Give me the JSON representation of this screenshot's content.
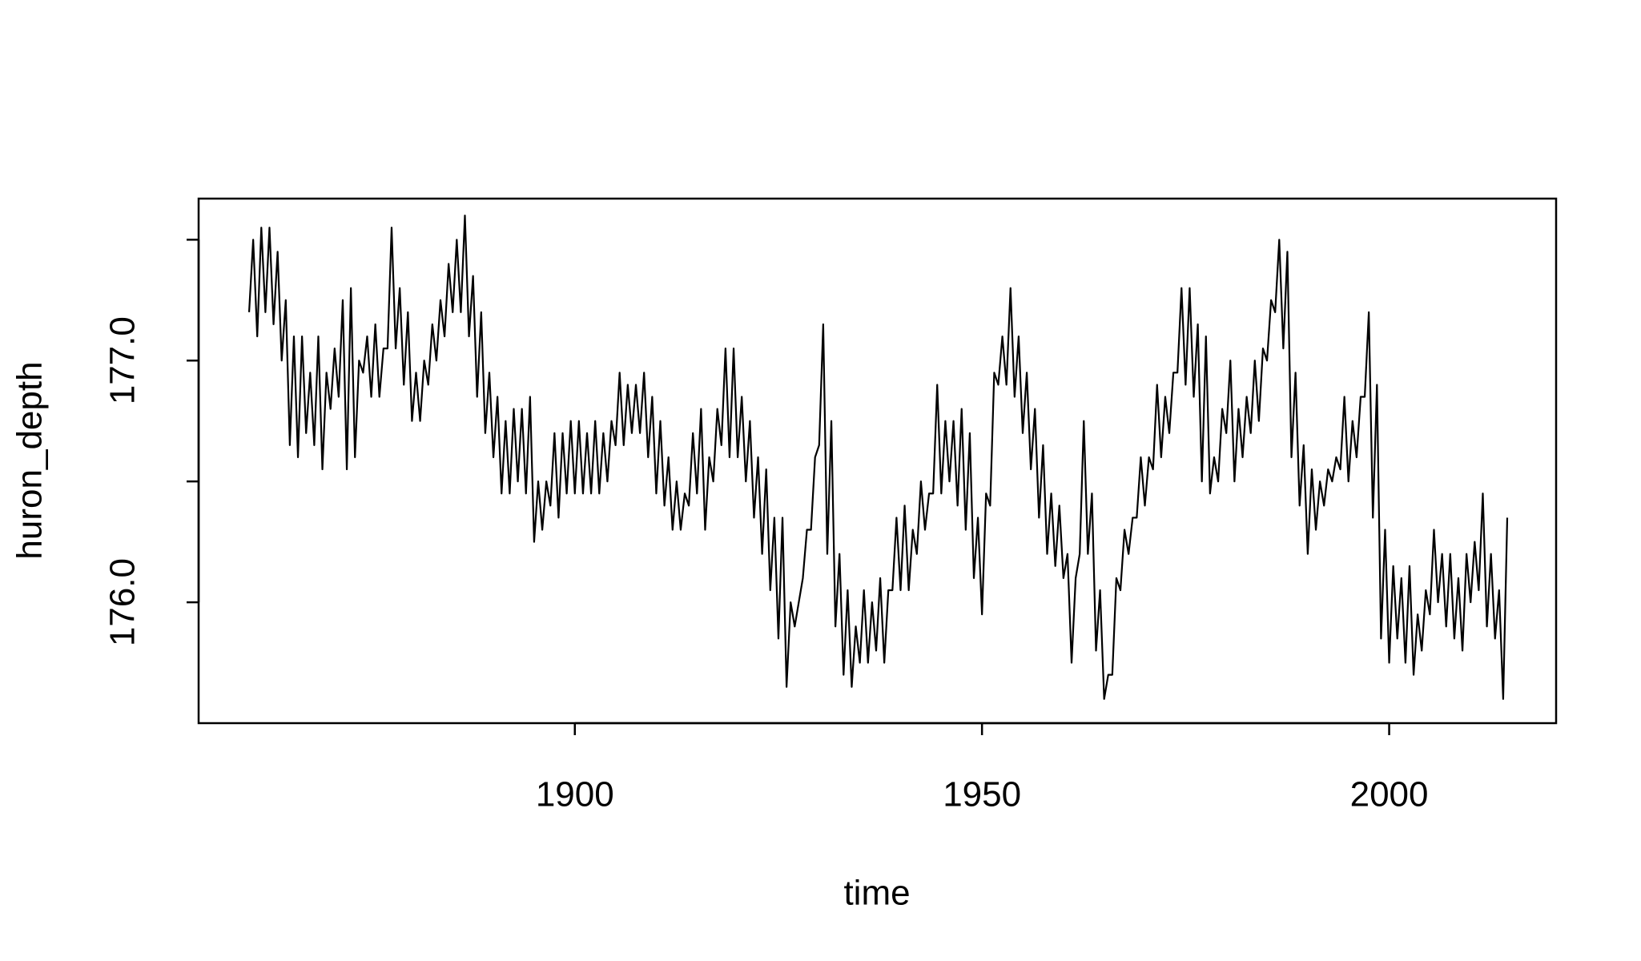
{
  "chart_data": {
    "type": "line",
    "x_label": "time",
    "y_label": "huron_depth",
    "xlim": [
      1853.8,
      2020.5
    ],
    "ylim": [
      175.5,
      177.67
    ],
    "xticks": [
      1900,
      1950,
      2000
    ],
    "yticks": [
      {
        "value": 176,
        "label": "176.0"
      },
      {
        "value": 177,
        "label": "177.0"
      }
    ],
    "minor_yticks": [
      176.5,
      177.5
    ],
    "grid": false,
    "series": [
      {
        "name": "huron_depth",
        "color": "#000000",
        "x": [
          1860,
          1860.5,
          1861,
          1861.5,
          1862,
          1862.5,
          1863,
          1863.5,
          1864,
          1864.5,
          1865,
          1865.5,
          1866,
          1866.5,
          1867,
          1867.5,
          1868,
          1868.5,
          1869,
          1869.5,
          1870,
          1870.5,
          1871,
          1871.5,
          1872,
          1872.5,
          1873,
          1873.5,
          1874,
          1874.5,
          1875,
          1875.5,
          1876,
          1876.5,
          1877,
          1877.5,
          1878,
          1878.5,
          1879,
          1879.5,
          1880,
          1880.5,
          1881,
          1881.5,
          1882,
          1882.5,
          1883,
          1883.5,
          1884,
          1884.5,
          1885,
          1885.5,
          1886,
          1886.5,
          1887,
          1887.5,
          1888,
          1888.5,
          1889,
          1889.5,
          1890,
          1890.5,
          1891,
          1891.5,
          1892,
          1892.5,
          1893,
          1893.5,
          1894,
          1894.5,
          1895,
          1895.5,
          1896,
          1896.5,
          1897,
          1897.5,
          1898,
          1898.5,
          1899,
          1899.5,
          1900,
          1900.5,
          1901,
          1901.5,
          1902,
          1902.5,
          1903,
          1903.5,
          1904,
          1904.5,
          1905,
          1905.5,
          1906,
          1906.5,
          1907,
          1907.5,
          1908,
          1908.5,
          1909,
          1909.5,
          1910,
          1910.5,
          1911,
          1911.5,
          1912,
          1912.5,
          1913,
          1913.5,
          1914,
          1914.5,
          1915,
          1915.5,
          1916,
          1916.5,
          1917,
          1917.5,
          1918,
          1918.5,
          1919,
          1919.5,
          1920,
          1920.5,
          1921,
          1921.5,
          1922,
          1922.5,
          1923,
          1923.5,
          1924,
          1924.5,
          1925,
          1925.5,
          1926,
          1926.5,
          1927,
          1927.5,
          1928,
          1928.5,
          1929,
          1929.5,
          1930,
          1930.5,
          1931,
          1931.5,
          1932,
          1932.5,
          1933,
          1933.5,
          1934,
          1934.5,
          1935,
          1935.5,
          1936,
          1936.5,
          1937,
          1937.5,
          1938,
          1938.5,
          1939,
          1939.5,
          1940,
          1940.5,
          1941,
          1941.5,
          1942,
          1942.5,
          1943,
          1943.5,
          1944,
          1944.5,
          1945,
          1945.5,
          1946,
          1946.5,
          1947,
          1947.5,
          1948,
          1948.5,
          1949,
          1949.5,
          1950,
          1950.5,
          1951,
          1951.5,
          1952,
          1952.5,
          1953,
          1953.5,
          1954,
          1954.5,
          1955,
          1955.5,
          1956,
          1956.5,
          1957,
          1957.5,
          1958,
          1958.5,
          1959,
          1959.5,
          1960,
          1960.5,
          1961,
          1961.5,
          1962,
          1962.5,
          1963,
          1963.5,
          1964,
          1964.5,
          1965,
          1965.5,
          1966,
          1966.5,
          1967,
          1967.5,
          1968,
          1968.5,
          1969,
          1969.5,
          1970,
          1970.5,
          1971,
          1971.5,
          1972,
          1972.5,
          1973,
          1973.5,
          1974,
          1974.5,
          1975,
          1975.5,
          1976,
          1976.5,
          1977,
          1977.5,
          1978,
          1978.5,
          1979,
          1979.5,
          1980,
          1980.5,
          1981,
          1981.5,
          1982,
          1982.5,
          1983,
          1983.5,
          1984,
          1984.5,
          1985,
          1985.5,
          1986,
          1986.5,
          1987,
          1987.5,
          1988,
          1988.5,
          1989,
          1989.5,
          1990,
          1990.5,
          1991,
          1991.5,
          1992,
          1992.5,
          1993,
          1993.5,
          1994,
          1994.5,
          1995,
          1995.5,
          1996,
          1996.5,
          1997,
          1997.5,
          1998,
          1998.5,
          1999,
          1999.5,
          2000,
          2000.5,
          2001,
          2001.5,
          2002,
          2002.5,
          2003,
          2003.5,
          2004,
          2004.5,
          2005,
          2005.5,
          2006,
          2006.5,
          2007,
          2007.5,
          2008,
          2008.5,
          2009,
          2009.5,
          2010,
          2010.5,
          2011,
          2011.5,
          2012,
          2012.5,
          2013,
          2013.5,
          2014,
          2014.5
        ],
        "values": [
          177.2,
          177.5,
          177.1,
          177.55,
          177.2,
          177.55,
          177.15,
          177.45,
          177.0,
          177.25,
          176.65,
          177.1,
          176.6,
          177.1,
          176.7,
          176.95,
          176.65,
          177.1,
          176.55,
          176.95,
          176.8,
          177.05,
          176.85,
          177.25,
          176.55,
          177.3,
          176.6,
          177.0,
          176.95,
          177.1,
          176.85,
          177.15,
          176.85,
          177.05,
          177.05,
          177.55,
          177.05,
          177.3,
          176.9,
          177.2,
          176.75,
          176.95,
          176.75,
          177.0,
          176.9,
          177.15,
          177.0,
          177.25,
          177.1,
          177.4,
          177.2,
          177.5,
          177.2,
          177.6,
          177.1,
          177.35,
          176.85,
          177.2,
          176.7,
          176.95,
          176.6,
          176.85,
          176.45,
          176.75,
          176.45,
          176.8,
          176.5,
          176.8,
          176.45,
          176.85,
          176.25,
          176.5,
          176.3,
          176.5,
          176.4,
          176.7,
          176.35,
          176.7,
          176.45,
          176.75,
          176.45,
          176.75,
          176.45,
          176.7,
          176.45,
          176.75,
          176.45,
          176.7,
          176.5,
          176.75,
          176.65,
          176.95,
          176.65,
          176.9,
          176.7,
          176.9,
          176.7,
          176.95,
          176.6,
          176.85,
          176.45,
          176.75,
          176.4,
          176.6,
          176.3,
          176.5,
          176.3,
          176.45,
          176.4,
          176.7,
          176.45,
          176.8,
          176.3,
          176.6,
          176.5,
          176.8,
          176.65,
          177.05,
          176.6,
          177.05,
          176.6,
          176.85,
          176.5,
          176.75,
          176.35,
          176.6,
          176.2,
          176.55,
          176.05,
          176.35,
          175.85,
          176.35,
          175.65,
          176.0,
          175.9,
          176.0,
          176.1,
          176.3,
          176.3,
          176.6,
          176.65,
          177.15,
          176.2,
          176.75,
          175.9,
          176.2,
          175.7,
          176.05,
          175.65,
          175.9,
          175.75,
          176.05,
          175.75,
          176.0,
          175.8,
          176.1,
          175.75,
          176.05,
          176.05,
          176.35,
          176.05,
          176.4,
          176.05,
          176.3,
          176.2,
          176.5,
          176.3,
          176.45,
          176.45,
          176.9,
          176.45,
          176.75,
          176.5,
          176.75,
          176.4,
          176.8,
          176.3,
          176.7,
          176.1,
          176.35,
          175.95,
          176.45,
          176.4,
          176.95,
          176.9,
          177.1,
          176.9,
          177.3,
          176.85,
          177.1,
          176.7,
          176.95,
          176.55,
          176.8,
          176.35,
          176.65,
          176.2,
          176.45,
          176.15,
          176.4,
          176.1,
          176.2,
          175.75,
          176.1,
          176.2,
          176.75,
          176.2,
          176.45,
          175.8,
          176.05,
          175.6,
          175.7,
          175.7,
          176.1,
          176.05,
          176.3,
          176.2,
          176.35,
          176.35,
          176.6,
          176.4,
          176.6,
          176.55,
          176.9,
          176.6,
          176.85,
          176.7,
          176.95,
          176.95,
          177.3,
          176.9,
          177.3,
          176.85,
          177.15,
          176.5,
          177.1,
          176.45,
          176.6,
          176.5,
          176.8,
          176.7,
          177.0,
          176.5,
          176.8,
          176.6,
          176.85,
          176.7,
          177.0,
          176.75,
          177.05,
          177.0,
          177.25,
          177.2,
          177.5,
          177.05,
          177.45,
          176.6,
          176.95,
          176.4,
          176.65,
          176.2,
          176.55,
          176.3,
          176.5,
          176.4,
          176.55,
          176.5,
          176.6,
          176.55,
          176.85,
          176.5,
          176.75,
          176.6,
          176.85,
          176.85,
          177.2,
          176.35,
          176.9,
          175.85,
          176.3,
          175.75,
          176.15,
          175.85,
          176.1,
          175.75,
          176.15,
          175.7,
          175.95,
          175.8,
          176.05,
          175.95,
          176.3,
          176.0,
          176.2,
          175.9,
          176.2,
          175.85,
          176.1,
          175.8,
          176.2,
          176.0,
          176.25,
          176.05,
          176.45,
          175.9,
          176.2,
          175.85,
          176.05,
          175.6,
          176.35
        ]
      }
    ]
  }
}
